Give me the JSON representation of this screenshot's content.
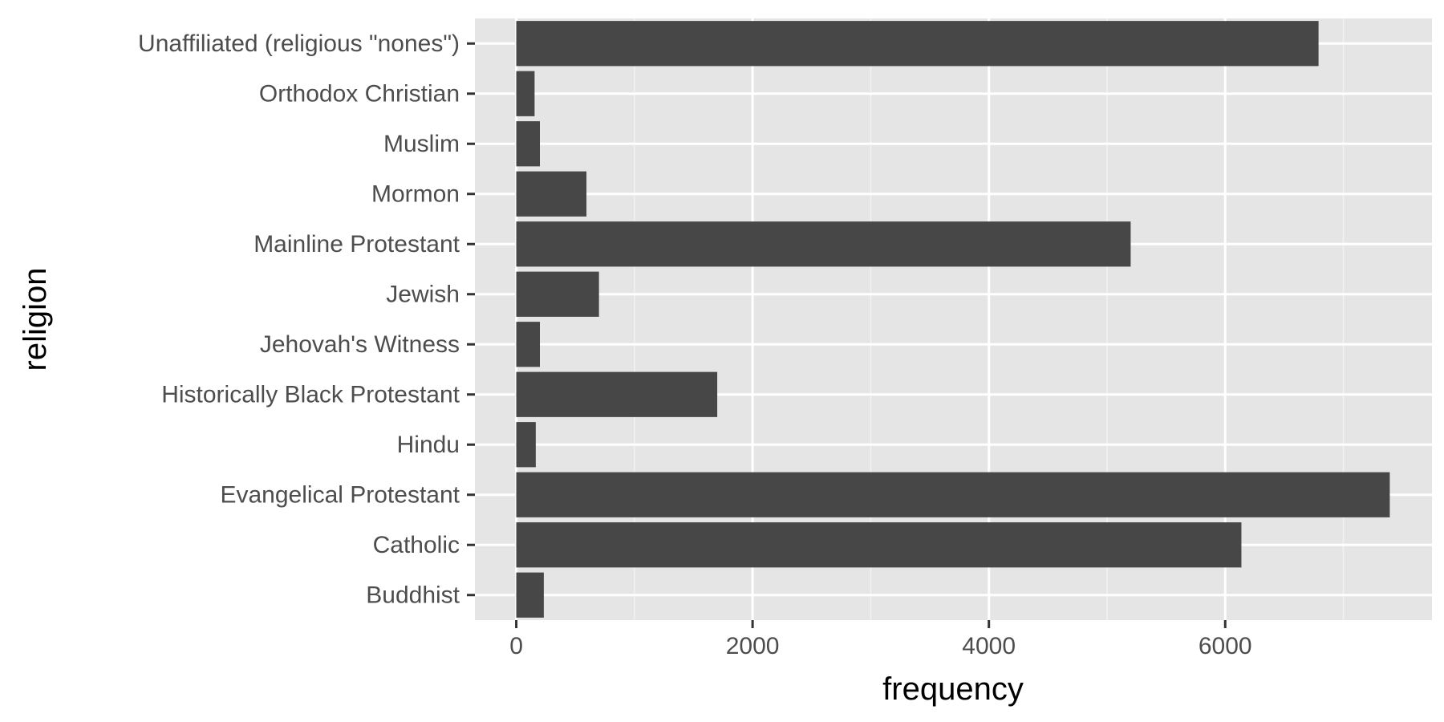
{
  "chart_data": {
    "type": "bar",
    "orientation": "horizontal",
    "title": "",
    "xlabel": "frequency",
    "ylabel": "religion",
    "categories": [
      "Buddhist",
      "Catholic",
      "Evangelical Protestant",
      "Hindu",
      "Historically Black Protestant",
      "Jehovah's Witness",
      "Jewish",
      "Mainline Protestant",
      "Mormon",
      "Muslim",
      "Orthodox Christian",
      "Unaffiliated (religious \"nones\")"
    ],
    "values": [
      233,
      6137,
      7393,
      165,
      1701,
      200,
      700,
      5200,
      594,
      200,
      155,
      6790
    ],
    "xlim": [
      -350,
      7750
    ],
    "xticks": [
      0,
      2000,
      4000,
      6000
    ],
    "xtick_labels": [
      "0",
      "2000",
      "4000",
      "6000"
    ],
    "grid": true,
    "legend": "none",
    "colors": {
      "bar": "#474747",
      "panel_background": "#e5e5e5",
      "grid_major": "#ffffff",
      "grid_minor": "#f2f2f2",
      "tick_text": "#4d4d4d",
      "axis_title": "#000000"
    }
  }
}
